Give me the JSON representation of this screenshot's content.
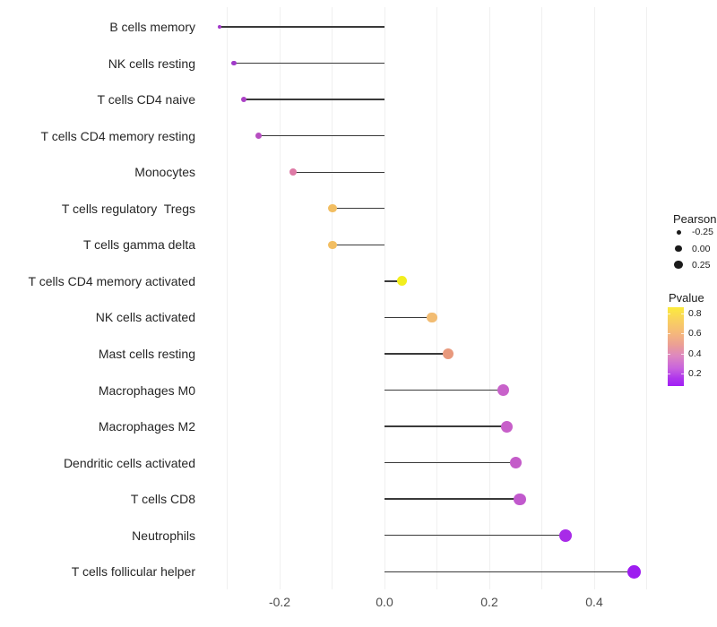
{
  "chart_data": {
    "type": "lollipop",
    "title": "",
    "xlabel": "",
    "ylabel": "",
    "grid": "vertical-only",
    "legend_position": "right",
    "xlim": [
      -0.356,
      0.516
    ],
    "grid_values": [
      -0.3,
      -0.2,
      -0.1,
      0.0,
      0.1,
      0.2,
      0.3,
      0.4,
      0.5
    ],
    "x_ticks": [
      {
        "value": -0.2,
        "label": "-0.2"
      },
      {
        "value": 0.0,
        "label": "0.0"
      },
      {
        "value": 0.2,
        "label": "0.2"
      },
      {
        "value": 0.4,
        "label": "0.4"
      }
    ],
    "categories": [
      "B cells memory",
      "NK cells resting",
      "T cells CD4 naive",
      "T cells CD4 memory resting",
      "Monocytes",
      "T cells regulatory  Tregs",
      "T cells gamma delta",
      "T cells CD4 memory activated",
      "NK cells activated",
      "Mast cells resting",
      "Macrophages M0",
      "Macrophages M2",
      "Dendritic cells activated",
      "T cells CD8",
      "Neutrophils",
      "T cells follicular helper"
    ],
    "points": [
      {
        "label": "B cells memory",
        "pearson": -0.315,
        "color": "#A238C9"
      },
      {
        "label": "NK cells resting",
        "pearson": -0.287,
        "color": "#A03AC9"
      },
      {
        "label": "T cells CD4 naive",
        "pearson": -0.268,
        "color": "#AC41C6"
      },
      {
        "label": "T cells CD4 memory resting",
        "pearson": -0.24,
        "color": "#B74EC1"
      },
      {
        "label": "Monocytes",
        "pearson": -0.174,
        "color": "#DE7AA6"
      },
      {
        "label": "T cells regulatory  Tregs",
        "pearson": -0.099,
        "color": "#F2BE62"
      },
      {
        "label": "T cells gamma delta",
        "pearson": -0.099,
        "color": "#F2BE62"
      },
      {
        "label": "T cells CD4 memory activated",
        "pearson": 0.034,
        "color": "#F2EE1E"
      },
      {
        "label": "NK cells activated",
        "pearson": 0.091,
        "color": "#F2BC72"
      },
      {
        "label": "Mast cells resting",
        "pearson": 0.121,
        "color": "#E8997D"
      },
      {
        "label": "Macrophages M0",
        "pearson": 0.227,
        "color": "#C862CA"
      },
      {
        "label": "Macrophages M2",
        "pearson": 0.233,
        "color": "#C75FC9"
      },
      {
        "label": "Dendritic cells activated",
        "pearson": 0.251,
        "color": "#C45CC9"
      },
      {
        "label": "T cells CD8",
        "pearson": 0.258,
        "color": "#C159CD"
      },
      {
        "label": "Neutrophils",
        "pearson": 0.345,
        "color": "#A82BE8"
      },
      {
        "label": "T cells follicular helper",
        "pearson": 0.476,
        "color": "#9D1DF0"
      }
    ],
    "size_legend": {
      "title": "Pearson",
      "entries": [
        {
          "label": "-0.25",
          "diameter": 5.0
        },
        {
          "label": "0.00",
          "diameter": 7.5
        },
        {
          "label": "0.25",
          "diameter": 9.3
        }
      ]
    },
    "color_legend": {
      "title": "Pvalue",
      "value_range": [
        0.08,
        0.86
      ],
      "ticks": [
        {
          "value": 0.8,
          "label": "0.8"
        },
        {
          "value": 0.6,
          "label": "0.6"
        },
        {
          "value": 0.4,
          "label": "0.4"
        },
        {
          "value": 0.2,
          "label": "0.2"
        }
      ],
      "gradient_stops": [
        {
          "color": "#FCEB3C",
          "pos": 0
        },
        {
          "color": "#F8CE62",
          "pos": 18
        },
        {
          "color": "#F5B87B",
          "pos": 33
        },
        {
          "color": "#ECA093",
          "pos": 47
        },
        {
          "color": "#DD87C0",
          "pos": 62
        },
        {
          "color": "#C862DE",
          "pos": 78
        },
        {
          "color": "#AF36EC",
          "pos": 90
        },
        {
          "color": "#A21EF5",
          "pos": 100
        }
      ]
    },
    "colors": {
      "stem": "#3a3a3a",
      "gridline": "#f0f0f0",
      "axis_text": "#4d4d4d",
      "category_text": "#262626",
      "legend_dot": "#1a1a1a"
    }
  }
}
